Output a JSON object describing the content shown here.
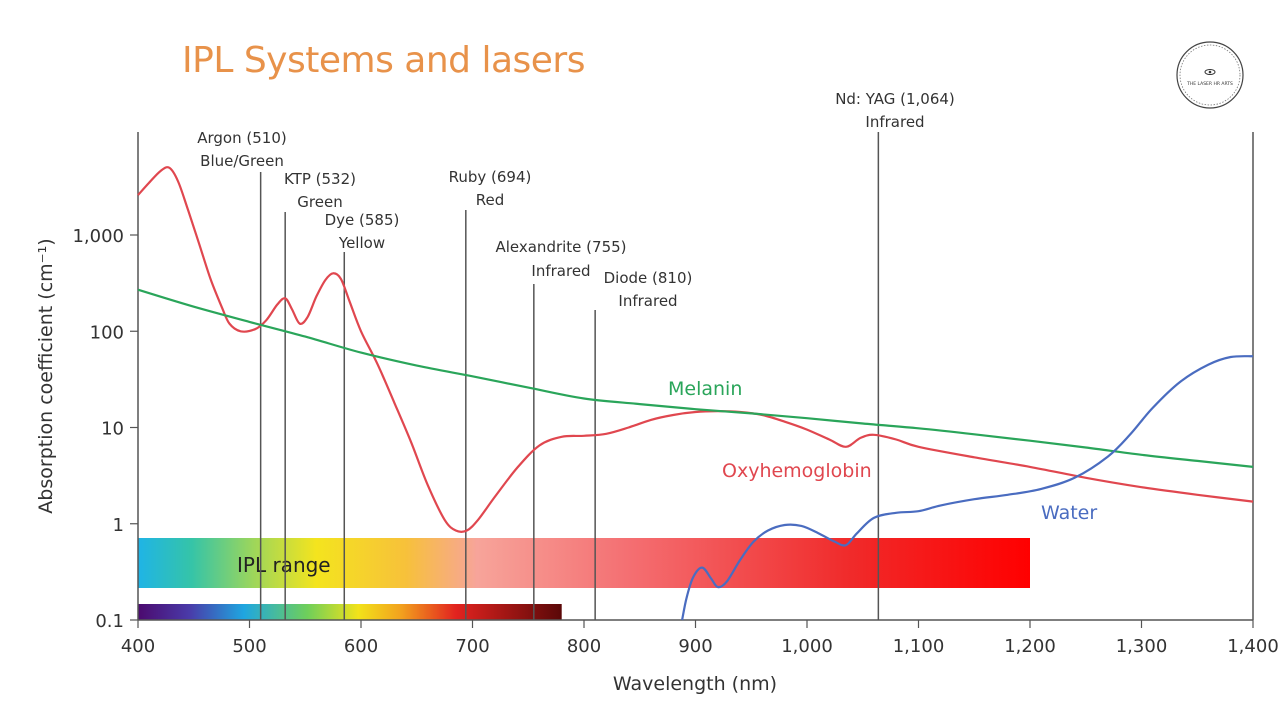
{
  "slide": {
    "title": "IPL Systems and lasers"
  },
  "logo": {
    "text": "THE LASER HR ARTS"
  },
  "chart_data": {
    "type": "line",
    "title": "IPL Systems and lasers",
    "xlabel": "Wavelength (nm)",
    "ylabel": "Absorption coefficient (cm⁻¹)",
    "xlim": [
      400,
      1400
    ],
    "ylim": [
      0.1,
      10000
    ],
    "yscale": "log",
    "x_ticks": [
      400,
      500,
      600,
      700,
      800,
      900,
      1000,
      1100,
      1200,
      1300,
      1400
    ],
    "x_tick_labels": [
      "400",
      "500",
      "600",
      "700",
      "800",
      "900",
      "1,000",
      "1,100",
      "1,200",
      "1,300",
      "1,400"
    ],
    "y_ticks": [
      0.1,
      1,
      10,
      100,
      1000
    ],
    "y_tick_labels": [
      "0.1",
      "1",
      "10",
      "100",
      "1,000"
    ],
    "series": [
      {
        "name": "Oxyhemoglobin",
        "color": "#e0474f",
        "points": [
          [
            400,
            2600
          ],
          [
            410,
            3500
          ],
          [
            420,
            4600
          ],
          [
            428,
            5000
          ],
          [
            436,
            3600
          ],
          [
            445,
            1800
          ],
          [
            455,
            800
          ],
          [
            465,
            350
          ],
          [
            475,
            180
          ],
          [
            482,
            120
          ],
          [
            492,
            100
          ],
          [
            505,
            105
          ],
          [
            515,
            130
          ],
          [
            525,
            190
          ],
          [
            532,
            220
          ],
          [
            538,
            170
          ],
          [
            545,
            120
          ],
          [
            552,
            140
          ],
          [
            560,
            230
          ],
          [
            568,
            340
          ],
          [
            575,
            400
          ],
          [
            582,
            350
          ],
          [
            590,
            200
          ],
          [
            600,
            100
          ],
          [
            615,
            45
          ],
          [
            630,
            18
          ],
          [
            645,
            7
          ],
          [
            660,
            2.5
          ],
          [
            675,
            1.1
          ],
          [
            685,
            0.85
          ],
          [
            695,
            0.85
          ],
          [
            705,
            1.1
          ],
          [
            720,
            1.9
          ],
          [
            740,
            3.8
          ],
          [
            760,
            6.5
          ],
          [
            780,
            8
          ],
          [
            800,
            8.2
          ],
          [
            820,
            8.6
          ],
          [
            840,
            10
          ],
          [
            860,
            12
          ],
          [
            880,
            13.5
          ],
          [
            900,
            14.5
          ],
          [
            920,
            14.8
          ],
          [
            940,
            14.5
          ],
          [
            960,
            13.5
          ],
          [
            980,
            11.5
          ],
          [
            1000,
            9.5
          ],
          [
            1020,
            7.5
          ],
          [
            1035,
            6.3
          ],
          [
            1048,
            7.8
          ],
          [
            1060,
            8.4
          ],
          [
            1080,
            7.5
          ],
          [
            1100,
            6.3
          ],
          [
            1150,
            4.9
          ],
          [
            1200,
            3.9
          ],
          [
            1250,
            3
          ],
          [
            1300,
            2.4
          ],
          [
            1350,
            2
          ],
          [
            1400,
            1.7
          ]
        ]
      },
      {
        "name": "Melanin",
        "color": "#2aa55a",
        "points": [
          [
            400,
            270
          ],
          [
            450,
            180
          ],
          [
            500,
            125
          ],
          [
            550,
            88
          ],
          [
            600,
            60
          ],
          [
            650,
            44
          ],
          [
            700,
            34
          ],
          [
            750,
            26
          ],
          [
            800,
            20
          ],
          [
            850,
            17.5
          ],
          [
            900,
            15.5
          ],
          [
            950,
            14
          ],
          [
            1000,
            12.5
          ],
          [
            1050,
            11
          ],
          [
            1100,
            9.8
          ],
          [
            1150,
            8.5
          ],
          [
            1200,
            7.3
          ],
          [
            1250,
            6.2
          ],
          [
            1300,
            5.2
          ],
          [
            1350,
            4.5
          ],
          [
            1400,
            3.9
          ]
        ]
      },
      {
        "name": "Water",
        "color": "#4a6cc0",
        "points": [
          [
            888,
            0.1
          ],
          [
            892,
            0.17
          ],
          [
            898,
            0.28
          ],
          [
            906,
            0.35
          ],
          [
            914,
            0.27
          ],
          [
            920,
            0.22
          ],
          [
            928,
            0.25
          ],
          [
            940,
            0.42
          ],
          [
            952,
            0.65
          ],
          [
            965,
            0.85
          ],
          [
            980,
            0.97
          ],
          [
            995,
            0.95
          ],
          [
            1010,
            0.8
          ],
          [
            1025,
            0.65
          ],
          [
            1035,
            0.6
          ],
          [
            1045,
            0.8
          ],
          [
            1060,
            1.15
          ],
          [
            1080,
            1.3
          ],
          [
            1100,
            1.35
          ],
          [
            1120,
            1.55
          ],
          [
            1150,
            1.8
          ],
          [
            1180,
            2
          ],
          [
            1210,
            2.3
          ],
          [
            1240,
            3
          ],
          [
            1270,
            5
          ],
          [
            1290,
            8.5
          ],
          [
            1310,
            16
          ],
          [
            1335,
            30
          ],
          [
            1360,
            45
          ],
          [
            1380,
            54
          ],
          [
            1400,
            55
          ]
        ]
      }
    ],
    "lasers": [
      {
        "wavelength": 510,
        "line1": "Argon (510)",
        "line2": "Blue/Green"
      },
      {
        "wavelength": 532,
        "line1": "KTP (532)",
        "line2": "Green"
      },
      {
        "wavelength": 585,
        "line1": "Dye (585)",
        "line2": "Yellow"
      },
      {
        "wavelength": 694,
        "line1": "Ruby (694)",
        "line2": "Red"
      },
      {
        "wavelength": 755,
        "line1": "Alexandrite (755)",
        "line2": "Infrared"
      },
      {
        "wavelength": 810,
        "line1": "Diode (810)",
        "line2": "Infrared"
      },
      {
        "wavelength": 1064,
        "line1": "Nd: YAG (1,064)",
        "line2": "Infrared"
      }
    ],
    "series_labels": [
      {
        "text": "Melanin",
        "color": "#2aa55a"
      },
      {
        "text": "Oxyhemoglobin",
        "color": "#e0474f"
      },
      {
        "text": "Water",
        "color": "#4a6cc0"
      }
    ],
    "ipl_range": {
      "label": "IPL range",
      "start": 400,
      "end": 1200
    },
    "visible_spectrum": {
      "start": 400,
      "end": 780
    }
  }
}
